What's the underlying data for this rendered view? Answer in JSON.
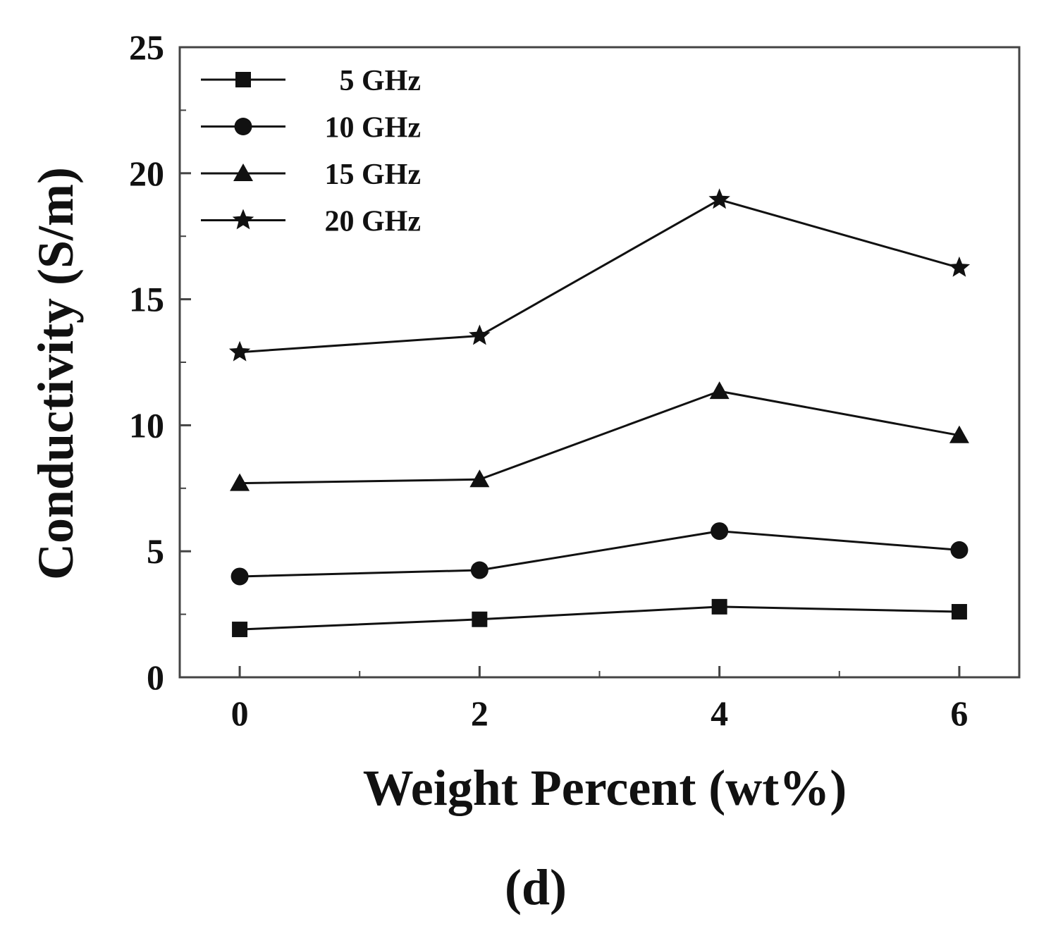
{
  "chart_data": {
    "type": "line",
    "title": "",
    "xlabel": "Weight Percent (wt%)",
    "ylabel": "Conductivity (S/m)",
    "panel_label": "(d)",
    "x": [
      0,
      2,
      4,
      6
    ],
    "xticks": [
      0,
      2,
      4,
      6
    ],
    "yticks": [
      0,
      5,
      10,
      15,
      20,
      25
    ],
    "xlim": [
      -0.5,
      6.5
    ],
    "ylim": [
      0,
      25
    ],
    "grid": false,
    "legend_position": "top-left",
    "line_color": "#111111",
    "series": [
      {
        "name": "5 GHz",
        "marker": "square",
        "values": [
          1.9,
          2.3,
          2.8,
          2.6
        ]
      },
      {
        "name": "10 GHz",
        "marker": "circle",
        "values": [
          4.0,
          4.25,
          5.8,
          5.05
        ]
      },
      {
        "name": "15 GHz",
        "marker": "triangle",
        "values": [
          7.7,
          7.85,
          11.35,
          9.6
        ]
      },
      {
        "name": "20 GHz",
        "marker": "star",
        "values": [
          12.9,
          13.55,
          18.95,
          16.25
        ]
      }
    ]
  }
}
